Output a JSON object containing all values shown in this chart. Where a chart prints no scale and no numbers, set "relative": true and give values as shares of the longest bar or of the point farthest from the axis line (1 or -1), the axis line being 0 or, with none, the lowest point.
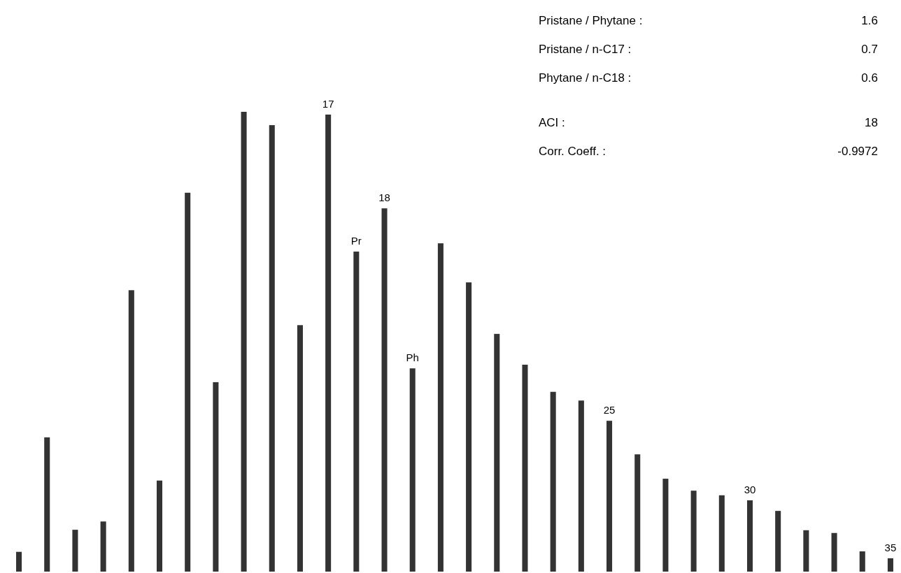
{
  "chart_data": {
    "type": "bar",
    "relative": true,
    "color": "#333333",
    "categories": [
      null,
      null,
      null,
      null,
      null,
      null,
      null,
      null,
      null,
      null,
      null,
      "17",
      "Pr",
      "18",
      "Ph",
      null,
      null,
      null,
      null,
      null,
      null,
      "25",
      null,
      null,
      null,
      null,
      "30",
      null,
      null,
      null,
      null,
      "35"
    ],
    "values": [
      0.043,
      0.292,
      0.091,
      0.109,
      0.612,
      0.198,
      0.824,
      0.412,
      1,
      0.971,
      0.536,
      0.994,
      0.696,
      0.79,
      0.442,
      0.714,
      0.629,
      0.517,
      0.45,
      0.391,
      0.372,
      0.328,
      0.255,
      0.202,
      0.176,
      0.166,
      0.155,
      0.132,
      0.09,
      0.084,
      0.044,
      0.029
    ],
    "annotations": [
      "Pristane / Phytane :",
      "1.6",
      "Pristane / n-C17 :",
      "0.7",
      "Phytane / n-C18 :",
      "0.6",
      "ACI :",
      "18",
      "Corr. Coeff. :",
      "-0.9972"
    ]
  }
}
